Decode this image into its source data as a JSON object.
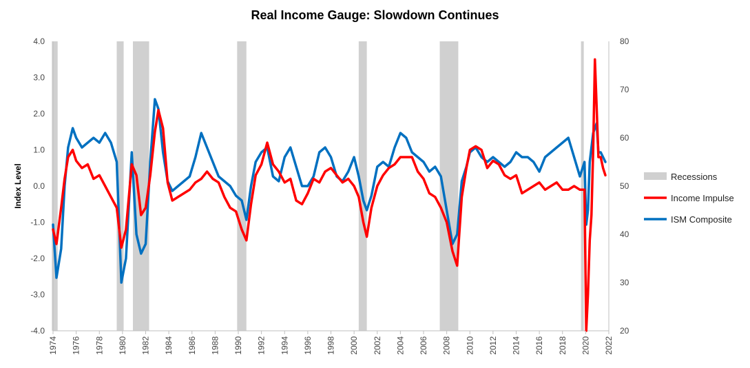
{
  "chart_data": {
    "type": "line",
    "title": "Real Income Gauge: Slowdown Continues",
    "ylabel": "Index Level",
    "xlabel": "",
    "xlim": [
      1974,
      2022
    ],
    "ylim_left": [
      -4.0,
      4.0
    ],
    "ylim_right": [
      20,
      80
    ],
    "x_ticks": [
      "1974",
      "1976",
      "1978",
      "1980",
      "1982",
      "1984",
      "1986",
      "1988",
      "1990",
      "1992",
      "1994",
      "1996",
      "1998",
      "2000",
      "2002",
      "2004",
      "2006",
      "2008",
      "2010",
      "2012",
      "2014",
      "2016",
      "2018",
      "2020",
      "2022"
    ],
    "y_ticks_left": [
      "4.0",
      "3.0",
      "2.0",
      "1.0",
      "0.0",
      "-1.0",
      "-2.0",
      "-3.0",
      "-4.0"
    ],
    "y_ticks_right": [
      "80",
      "70",
      "60",
      "50",
      "40",
      "30",
      "20"
    ],
    "legend_position": "right",
    "grid": false,
    "recessions": [
      [
        1973.9,
        1974.4
      ],
      [
        1979.5,
        1980.1
      ],
      [
        1980.9,
        1982.3
      ],
      [
        1989.9,
        1990.7
      ],
      [
        2000.4,
        2001.1
      ],
      [
        2007.4,
        2009.0
      ],
      [
        2019.6,
        2019.8
      ]
    ],
    "series": [
      {
        "name": "Recessions",
        "color": "#d0d0d0",
        "kind": "band"
      },
      {
        "name": "Income Impulse",
        "color": "#ff0000",
        "axis": "left",
        "x": [
          1974.0,
          1974.3,
          1974.7,
          1975.0,
          1975.3,
          1975.7,
          1976.0,
          1976.5,
          1977.0,
          1977.5,
          1978.0,
          1978.5,
          1979.0,
          1979.5,
          1979.9,
          1980.3,
          1980.8,
          1981.2,
          1981.6,
          1982.0,
          1982.4,
          1982.8,
          1983.1,
          1983.5,
          1983.9,
          1984.3,
          1984.8,
          1985.3,
          1985.8,
          1986.3,
          1986.8,
          1987.3,
          1987.8,
          1988.3,
          1988.8,
          1989.3,
          1989.8,
          1990.3,
          1990.7,
          1991.1,
          1991.5,
          1992.0,
          1992.5,
          1993.0,
          1993.5,
          1994.0,
          1994.5,
          1995.0,
          1995.5,
          1996.0,
          1996.5,
          1997.0,
          1997.5,
          1998.0,
          1998.5,
          1999.0,
          1999.5,
          2000.0,
          2000.4,
          2000.8,
          2001.1,
          2001.5,
          2002.0,
          2002.5,
          2003.0,
          2003.5,
          2004.0,
          2004.5,
          2005.0,
          2005.5,
          2006.0,
          2006.5,
          2007.0,
          2007.5,
          2008.0,
          2008.5,
          2008.9,
          2009.3,
          2009.7,
          2010.0,
          2010.5,
          2011.0,
          2011.5,
          2012.0,
          2012.5,
          2013.0,
          2013.5,
          2014.0,
          2014.5,
          2015.0,
          2015.5,
          2016.0,
          2016.5,
          2017.0,
          2017.5,
          2018.0,
          2018.5,
          2019.0,
          2019.5,
          2019.9,
          2020.05,
          2020.2,
          2020.35,
          2020.5,
          2020.65,
          2020.8,
          2020.95,
          2021.1,
          2021.3,
          2021.5,
          2021.7
        ],
        "y": [
          -1.2,
          -1.6,
          -0.6,
          0.2,
          0.8,
          1.0,
          0.7,
          0.5,
          0.6,
          0.2,
          0.3,
          0.0,
          -0.3,
          -0.6,
          -1.7,
          -1.2,
          0.6,
          0.3,
          -0.8,
          -0.6,
          0.3,
          1.5,
          2.1,
          1.6,
          0.1,
          -0.4,
          -0.3,
          -0.2,
          -0.1,
          0.1,
          0.2,
          0.4,
          0.2,
          0.1,
          -0.3,
          -0.6,
          -0.7,
          -1.2,
          -1.5,
          -0.5,
          0.3,
          0.6,
          1.2,
          0.6,
          0.4,
          0.1,
          0.2,
          -0.4,
          -0.5,
          -0.2,
          0.2,
          0.1,
          0.4,
          0.5,
          0.3,
          0.1,
          0.2,
          0.0,
          -0.3,
          -1.0,
          -1.4,
          -0.6,
          0.0,
          0.3,
          0.5,
          0.6,
          0.8,
          0.8,
          0.8,
          0.4,
          0.2,
          -0.2,
          -0.3,
          -0.6,
          -1.0,
          -1.8,
          -2.2,
          -0.3,
          0.5,
          1.0,
          1.1,
          1.0,
          0.5,
          0.7,
          0.6,
          0.3,
          0.2,
          0.3,
          -0.2,
          -0.1,
          0.0,
          0.1,
          -0.1,
          0.0,
          0.1,
          -0.1,
          -0.1,
          0.0,
          -0.1,
          -0.1,
          -4.0,
          -3.0,
          -1.5,
          -0.8,
          1.0,
          3.5,
          2.2,
          0.8,
          0.8,
          0.5,
          0.3
        ]
      },
      {
        "name": "ISM Composite",
        "color": "#0070c0",
        "axis": "right",
        "x": [
          1974.0,
          1974.3,
          1974.7,
          1975.0,
          1975.3,
          1975.7,
          1976.0,
          1976.5,
          1977.0,
          1977.5,
          1978.0,
          1978.5,
          1979.0,
          1979.5,
          1979.9,
          1980.3,
          1980.8,
          1981.2,
          1981.6,
          1982.0,
          1982.4,
          1982.8,
          1983.1,
          1983.5,
          1983.9,
          1984.3,
          1984.8,
          1985.3,
          1985.8,
          1986.3,
          1986.8,
          1987.3,
          1987.8,
          1988.3,
          1988.8,
          1989.3,
          1989.8,
          1990.3,
          1990.7,
          1991.1,
          1991.5,
          1992.0,
          1992.5,
          1993.0,
          1993.5,
          1994.0,
          1994.5,
          1995.0,
          1995.5,
          1996.0,
          1996.5,
          1997.0,
          1997.5,
          1998.0,
          1998.5,
          1999.0,
          1999.5,
          2000.0,
          2000.4,
          2000.8,
          2001.1,
          2001.5,
          2002.0,
          2002.5,
          2003.0,
          2003.5,
          2004.0,
          2004.5,
          2005.0,
          2005.5,
          2006.0,
          2006.5,
          2007.0,
          2007.5,
          2008.0,
          2008.5,
          2008.9,
          2009.3,
          2009.7,
          2010.0,
          2010.5,
          2011.0,
          2011.5,
          2012.0,
          2012.5,
          2013.0,
          2013.5,
          2014.0,
          2014.5,
          2015.0,
          2015.5,
          2016.0,
          2016.5,
          2017.0,
          2017.5,
          2018.0,
          2018.5,
          2019.0,
          2019.5,
          2019.9,
          2020.05,
          2020.2,
          2020.35,
          2020.5,
          2020.65,
          2020.8,
          2020.95,
          2021.1,
          2021.3,
          2021.5,
          2021.7
        ],
        "y": [
          42,
          31,
          37,
          50,
          58,
          62,
          60,
          58,
          59,
          60,
          59,
          61,
          59,
          55,
          30,
          35,
          57,
          40,
          36,
          38,
          55,
          68,
          66,
          57,
          51,
          49,
          50,
          51,
          52,
          56,
          61,
          58,
          55,
          52,
          51,
          50,
          48,
          47,
          43,
          50,
          55,
          57,
          58,
          52,
          51,
          56,
          58,
          54,
          50,
          50,
          52,
          57,
          58,
          56,
          52,
          51,
          53,
          56,
          52,
          47,
          45,
          48,
          54,
          55,
          54,
          58,
          61,
          60,
          57,
          56,
          55,
          53,
          54,
          52,
          45,
          38,
          40,
          51,
          54,
          57,
          58,
          56,
          55,
          56,
          55,
          54,
          55,
          57,
          56,
          56,
          55,
          53,
          56,
          57,
          58,
          59,
          60,
          56,
          52,
          55,
          42,
          45,
          55,
          58,
          61,
          62,
          63,
          57,
          57,
          56,
          55
        ]
      }
    ]
  }
}
